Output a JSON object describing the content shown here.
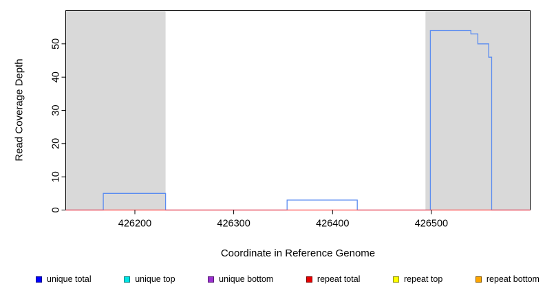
{
  "chart_data": {
    "type": "line",
    "title": "",
    "xlabel": "Coordinate in Reference Genome",
    "ylabel": "Read Coverage Depth",
    "xlim": [
      426130,
      426600
    ],
    "ylim": [
      0,
      60
    ],
    "xticks": [
      426200,
      426300,
      426400,
      426500
    ],
    "yticks": [
      0,
      10,
      20,
      30,
      40,
      50
    ],
    "grid": false,
    "background": "#ffffff",
    "plot_border_color": "#000000",
    "shaded_regions": [
      {
        "x0": 426130,
        "x1": 426231,
        "color": "#d9d9d9"
      },
      {
        "x0": 426494,
        "x1": 426600,
        "color": "#d9d9d9"
      }
    ],
    "series": [
      {
        "name": "unique total",
        "color": "#5b8cf0",
        "points": [
          [
            426130,
            0
          ],
          [
            426168,
            0
          ],
          [
            426168,
            5
          ],
          [
            426231,
            5
          ],
          [
            426231,
            0
          ],
          [
            426354,
            0
          ],
          [
            426354,
            3
          ],
          [
            426425,
            3
          ],
          [
            426425,
            0
          ],
          [
            426499,
            0
          ],
          [
            426499,
            54
          ],
          [
            426540,
            54
          ],
          [
            426540,
            53
          ],
          [
            426547,
            53
          ],
          [
            426547,
            50
          ],
          [
            426558,
            50
          ],
          [
            426558,
            46
          ],
          [
            426561,
            46
          ],
          [
            426561,
            0
          ],
          [
            426600,
            0
          ]
        ]
      },
      {
        "name": "repeat total",
        "color": "#ff4444",
        "points": [
          [
            426130,
            0
          ],
          [
            426600,
            0
          ]
        ]
      }
    ],
    "legend": {
      "position": "bottom",
      "items": [
        {
          "label": "unique total",
          "color": "#0000ff"
        },
        {
          "label": "unique top",
          "color": "#00e5e5"
        },
        {
          "label": "unique bottom",
          "color": "#9b30d0"
        },
        {
          "label": "repeat total",
          "color": "#e60000"
        },
        {
          "label": "repeat top",
          "color": "#ffff00"
        },
        {
          "label": "repeat bottom",
          "color": "#ffa500"
        }
      ]
    }
  }
}
